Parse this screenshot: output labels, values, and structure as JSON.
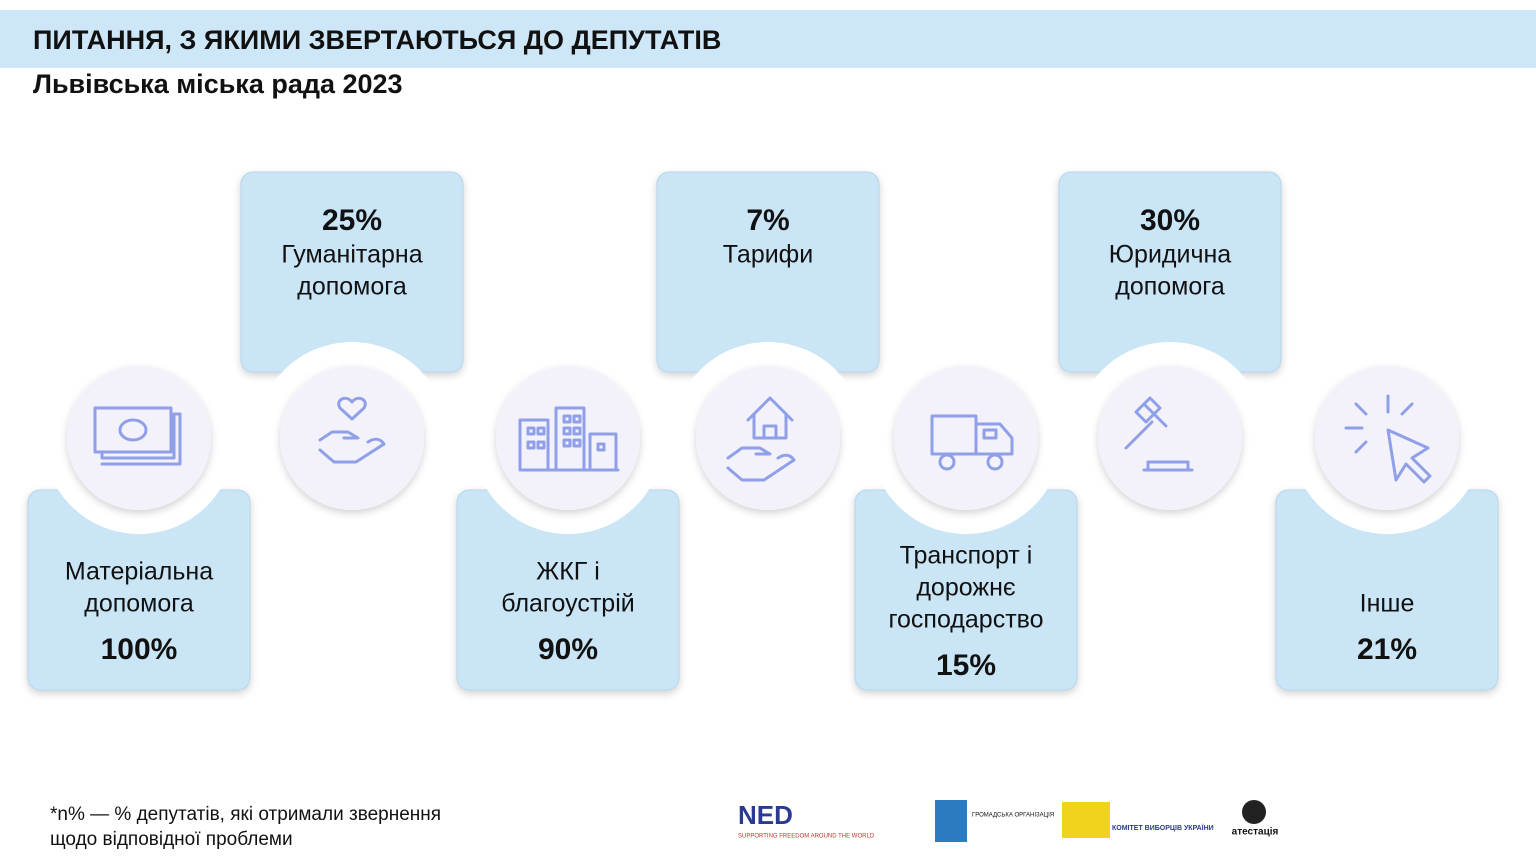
{
  "header": {
    "title": "ПИТАННЯ, З ЯКИМИ ЗВЕРТАЮТЬСЯ ДО ДЕПУТАТІВ",
    "subtitle": "Львівська міська рада 2023"
  },
  "items": [
    {
      "label_lines": [
        "Матеріальна",
        "допомога"
      ],
      "value": "100%"
    },
    {
      "label_lines": [
        "Гуманітарна",
        "допомога"
      ],
      "value": "25%"
    },
    {
      "label_lines": [
        "ЖКГ і",
        "благоустрій"
      ],
      "value": "90%"
    },
    {
      "label_lines": [
        "Тарифи"
      ],
      "value": "7%"
    },
    {
      "label_lines": [
        "Транспорт і",
        "дорожнє",
        "господарство"
      ],
      "value": "15%"
    },
    {
      "label_lines": [
        "Юридична",
        "допомога"
      ],
      "value": "30%"
    },
    {
      "label_lines": [
        "Інше"
      ],
      "value": "21%"
    }
  ],
  "footnote": [
    "*n% — % депутатів, які отримали звернення",
    "щодо відповідної проблеми"
  ],
  "logos": {
    "ned": "NED",
    "ned_sub": "SUPPORTING FREEDOM AROUND THE WORLD",
    "go": "ГРОМАДСЬКА ОРГАНІЗАЦІЯ",
    "cvu": "КОМІТЕТ ВИБОРЦІВ УКРАЇНИ",
    "atest": "атестація"
  }
}
